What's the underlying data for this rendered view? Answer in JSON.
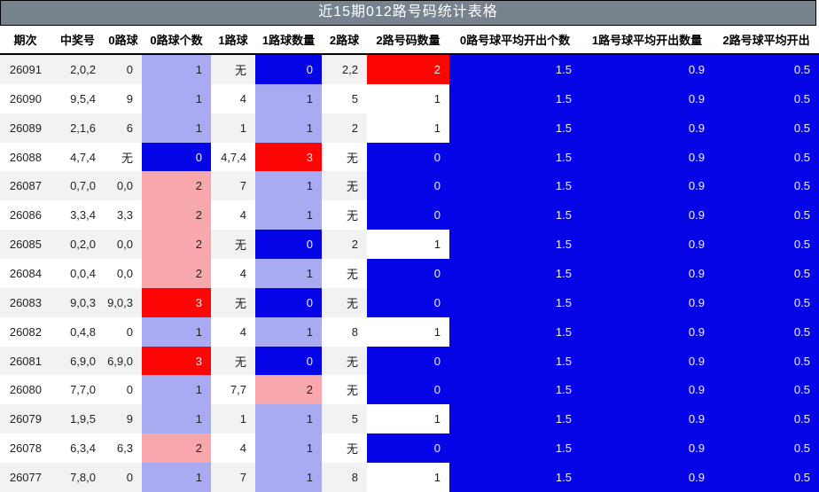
{
  "title": "近15期012路号码统计表格",
  "chart_data": {
    "type": "table",
    "title": "近15期012路号码统计表格",
    "columns": [
      "期次",
      "中奖号",
      "0路球",
      "0路球个数",
      "1路球",
      "1路球数量",
      "2路球",
      "2路号码数量",
      "0路号球平均开出个数",
      "1路号球平均开出数量",
      "2路号球平均开出"
    ],
    "rows": [
      {
        "period": "26091",
        "winning": "2,0,2",
        "road0_balls": "0",
        "road0_count": "1",
        "road0_level": "lightblue",
        "road1_balls": "无",
        "road1_count": "0",
        "road1_level": "blue",
        "road2_balls": "2,2",
        "road2_count": "2",
        "road2_level": "red",
        "avg_road0": "1.5",
        "avg_road1": "0.9",
        "avg_road2": "0.5"
      },
      {
        "period": "26090",
        "winning": "9,5,4",
        "road0_balls": "9",
        "road0_count": "1",
        "road0_level": "lightblue",
        "road1_balls": "4",
        "road1_count": "1",
        "road1_level": "lightblue",
        "road2_balls": "5",
        "road2_count": "1",
        "road2_level": "white",
        "avg_road0": "1.5",
        "avg_road1": "0.9",
        "avg_road2": "0.5"
      },
      {
        "period": "26089",
        "winning": "2,1,6",
        "road0_balls": "6",
        "road0_count": "1",
        "road0_level": "lightblue",
        "road1_balls": "1",
        "road1_count": "1",
        "road1_level": "lightblue",
        "road2_balls": "2",
        "road2_count": "1",
        "road2_level": "white",
        "avg_road0": "1.5",
        "avg_road1": "0.9",
        "avg_road2": "0.5"
      },
      {
        "period": "26088",
        "winning": "4,7,4",
        "road0_balls": "无",
        "road0_count": "0",
        "road0_level": "blue",
        "road1_balls": "4,7,4",
        "road1_count": "3",
        "road1_level": "red",
        "road2_balls": "无",
        "road2_count": "0",
        "road2_level": "blue",
        "avg_road0": "1.5",
        "avg_road1": "0.9",
        "avg_road2": "0.5"
      },
      {
        "period": "26087",
        "winning": "0,7,0",
        "road0_balls": "0,0",
        "road0_count": "2",
        "road0_level": "pink",
        "road1_balls": "7",
        "road1_count": "1",
        "road1_level": "lightblue",
        "road2_balls": "无",
        "road2_count": "0",
        "road2_level": "blue",
        "avg_road0": "1.5",
        "avg_road1": "0.9",
        "avg_road2": "0.5"
      },
      {
        "period": "26086",
        "winning": "3,3,4",
        "road0_balls": "3,3",
        "road0_count": "2",
        "road0_level": "pink",
        "road1_balls": "4",
        "road1_count": "1",
        "road1_level": "lightblue",
        "road2_balls": "无",
        "road2_count": "0",
        "road2_level": "blue",
        "avg_road0": "1.5",
        "avg_road1": "0.9",
        "avg_road2": "0.5"
      },
      {
        "period": "26085",
        "winning": "0,2,0",
        "road0_balls": "0,0",
        "road0_count": "2",
        "road0_level": "pink",
        "road1_balls": "无",
        "road1_count": "0",
        "road1_level": "blue",
        "road2_balls": "2",
        "road2_count": "1",
        "road2_level": "white",
        "avg_road0": "1.5",
        "avg_road1": "0.9",
        "avg_road2": "0.5"
      },
      {
        "period": "26084",
        "winning": "0,0,4",
        "road0_balls": "0,0",
        "road0_count": "2",
        "road0_level": "pink",
        "road1_balls": "4",
        "road1_count": "1",
        "road1_level": "lightblue",
        "road2_balls": "无",
        "road2_count": "0",
        "road2_level": "blue",
        "avg_road0": "1.5",
        "avg_road1": "0.9",
        "avg_road2": "0.5"
      },
      {
        "period": "26083",
        "winning": "9,0,3",
        "road0_balls": "9,0,3",
        "road0_count": "3",
        "road0_level": "red",
        "road1_balls": "无",
        "road1_count": "0",
        "road1_level": "blue",
        "road2_balls": "无",
        "road2_count": "0",
        "road2_level": "blue",
        "avg_road0": "1.5",
        "avg_road1": "0.9",
        "avg_road2": "0.5"
      },
      {
        "period": "26082",
        "winning": "0,4,8",
        "road0_balls": "0",
        "road0_count": "1",
        "road0_level": "lightblue",
        "road1_balls": "4",
        "road1_count": "1",
        "road1_level": "lightblue",
        "road2_balls": "8",
        "road2_count": "1",
        "road2_level": "white",
        "avg_road0": "1.5",
        "avg_road1": "0.9",
        "avg_road2": "0.5"
      },
      {
        "period": "26081",
        "winning": "6,9,0",
        "road0_balls": "6,9,0",
        "road0_count": "3",
        "road0_level": "red",
        "road1_balls": "无",
        "road1_count": "0",
        "road1_level": "blue",
        "road2_balls": "无",
        "road2_count": "0",
        "road2_level": "blue",
        "avg_road0": "1.5",
        "avg_road1": "0.9",
        "avg_road2": "0.5"
      },
      {
        "period": "26080",
        "winning": "7,7,0",
        "road0_balls": "0",
        "road0_count": "1",
        "road0_level": "lightblue",
        "road1_balls": "7,7",
        "road1_count": "2",
        "road1_level": "pink",
        "road2_balls": "无",
        "road2_count": "0",
        "road2_level": "blue",
        "avg_road0": "1.5",
        "avg_road1": "0.9",
        "avg_road2": "0.5"
      },
      {
        "period": "26079",
        "winning": "1,9,5",
        "road0_balls": "9",
        "road0_count": "1",
        "road0_level": "lightblue",
        "road1_balls": "1",
        "road1_count": "1",
        "road1_level": "lightblue",
        "road2_balls": "5",
        "road2_count": "1",
        "road2_level": "white",
        "avg_road0": "1.5",
        "avg_road1": "0.9",
        "avg_road2": "0.5"
      },
      {
        "period": "26078",
        "winning": "6,3,4",
        "road0_balls": "6,3",
        "road0_count": "2",
        "road0_level": "pink",
        "road1_balls": "4",
        "road1_count": "1",
        "road1_level": "lightblue",
        "road2_balls": "无",
        "road2_count": "0",
        "road2_level": "blue",
        "avg_road0": "1.5",
        "avg_road1": "0.9",
        "avg_road2": "0.5"
      },
      {
        "period": "26077",
        "winning": "7,8,0",
        "road0_balls": "0",
        "road0_count": "1",
        "road0_level": "lightblue",
        "road1_balls": "7",
        "road1_count": "1",
        "road1_level": "lightblue",
        "road2_balls": "8",
        "road2_count": "1",
        "road2_level": "white",
        "avg_road0": "1.5",
        "avg_road1": "0.9",
        "avg_road2": "0.5"
      }
    ],
    "colors": {
      "title_bg": "#76838f",
      "heat_blue": "#0505e8",
      "heat_red": "#fb0505",
      "heat_lightblue": "#a8abf2",
      "heat_pink": "#f8a8ac",
      "row_stripe": "#f2f2f2",
      "header_text": "#000000",
      "cell_text": "#1f1f1f",
      "on_color_text": "#f2f2f2"
    }
  }
}
